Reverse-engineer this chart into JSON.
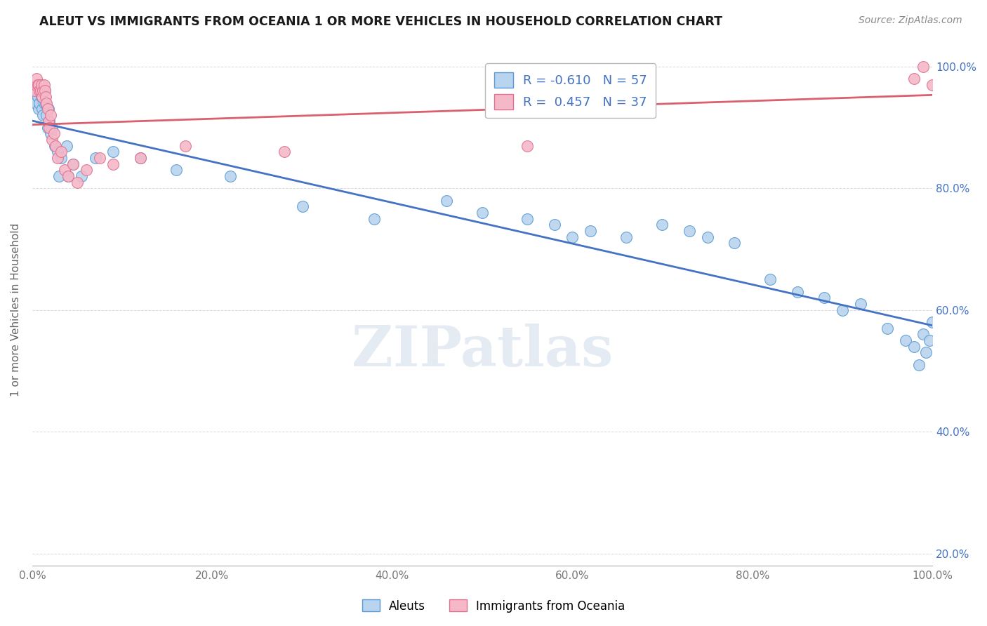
{
  "title": "ALEUT VS IMMIGRANTS FROM OCEANIA 1 OR MORE VEHICLES IN HOUSEHOLD CORRELATION CHART",
  "source": "Source: ZipAtlas.com",
  "ylabel": "1 or more Vehicles in Household",
  "aleuts_R": -0.61,
  "aleuts_N": 57,
  "oceania_R": 0.457,
  "oceania_N": 37,
  "aleuts_color": "#b8d4ee",
  "oceania_color": "#f5b8c8",
  "aleuts_edge_color": "#5b9bd5",
  "oceania_edge_color": "#e07090",
  "aleuts_line_color": "#4472c4",
  "oceania_line_color": "#d9606e",
  "background_color": "#ffffff",
  "grid_color": "#d8d8d8",
  "watermark": "ZIPatlas",
  "xlim": [
    0.0,
    1.0
  ],
  "ylim": [
    0.18,
    1.02
  ],
  "xticks": [
    0.0,
    0.2,
    0.4,
    0.6,
    0.8,
    1.0
  ],
  "yticks": [
    0.2,
    0.4,
    0.6,
    0.8,
    1.0
  ],
  "xticklabels": [
    "0.0%",
    "20.0%",
    "40.0%",
    "60.0%",
    "80.0%",
    "100.0%"
  ],
  "yticklabels": [
    "20.0%",
    "40.0%",
    "60.0%",
    "80.0%",
    "100.0%"
  ],
  "aleuts_x": [
    0.003,
    0.005,
    0.006,
    0.007,
    0.008,
    0.009,
    0.01,
    0.011,
    0.012,
    0.013,
    0.014,
    0.015,
    0.016,
    0.017,
    0.018,
    0.019,
    0.02,
    0.022,
    0.025,
    0.028,
    0.032,
    0.038,
    0.045,
    0.055,
    0.07,
    0.09,
    0.12,
    0.16,
    0.22,
    0.3,
    0.38,
    0.46,
    0.5,
    0.55,
    0.58,
    0.62,
    0.66,
    0.7,
    0.73,
    0.75,
    0.78,
    0.82,
    0.85,
    0.88,
    0.9,
    0.92,
    0.95,
    0.97,
    0.98,
    0.985,
    0.99,
    0.993,
    0.997,
    1.0,
    0.03,
    0.04,
    0.6
  ],
  "aleuts_y": [
    0.94,
    0.96,
    0.95,
    0.93,
    0.94,
    0.96,
    0.95,
    0.93,
    0.92,
    0.94,
    0.96,
    0.94,
    0.92,
    0.9,
    0.93,
    0.91,
    0.89,
    0.9,
    0.87,
    0.86,
    0.85,
    0.87,
    0.84,
    0.82,
    0.85,
    0.86,
    0.85,
    0.83,
    0.82,
    0.77,
    0.75,
    0.78,
    0.76,
    0.75,
    0.74,
    0.73,
    0.72,
    0.74,
    0.73,
    0.72,
    0.71,
    0.65,
    0.63,
    0.62,
    0.6,
    0.61,
    0.57,
    0.55,
    0.54,
    0.51,
    0.56,
    0.53,
    0.55,
    0.58,
    0.82,
    0.82,
    0.72
  ],
  "oceania_x": [
    0.002,
    0.004,
    0.005,
    0.006,
    0.007,
    0.008,
    0.009,
    0.01,
    0.011,
    0.012,
    0.013,
    0.014,
    0.015,
    0.016,
    0.017,
    0.018,
    0.019,
    0.02,
    0.022,
    0.024,
    0.026,
    0.028,
    0.032,
    0.036,
    0.04,
    0.045,
    0.05,
    0.06,
    0.075,
    0.09,
    0.12,
    0.17,
    0.28,
    0.55,
    0.98,
    0.99,
    1.0
  ],
  "oceania_y": [
    0.96,
    0.97,
    0.98,
    0.97,
    0.97,
    0.96,
    0.96,
    0.97,
    0.95,
    0.96,
    0.97,
    0.96,
    0.95,
    0.94,
    0.93,
    0.91,
    0.9,
    0.92,
    0.88,
    0.89,
    0.87,
    0.85,
    0.86,
    0.83,
    0.82,
    0.84,
    0.81,
    0.83,
    0.85,
    0.84,
    0.85,
    0.87,
    0.86,
    0.87,
    0.98,
    1.0,
    0.97
  ]
}
